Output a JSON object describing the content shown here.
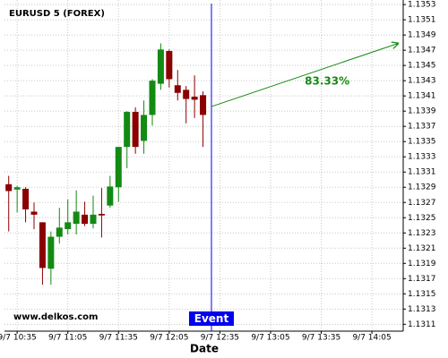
{
  "chart_data": {
    "type": "candlestick",
    "title": "EURUSD 5 (FOREX)",
    "xlabel": "Date",
    "watermark": "www.delkos.com",
    "x": [
      630,
      635,
      640,
      645,
      650,
      655,
      660,
      665,
      670,
      675,
      680,
      685,
      690,
      695,
      700,
      705,
      710,
      715,
      720,
      725,
      730,
      735,
      740,
      745
    ],
    "open": [
      1.13294,
      1.13287,
      1.13288,
      1.13258,
      1.13244,
      1.13183,
      1.13225,
      1.13235,
      1.13242,
      1.13254,
      1.13242,
      1.13255,
      1.13266,
      1.1329,
      1.13343,
      1.13389,
      1.13351,
      1.13385,
      1.13426,
      1.13469,
      1.13424,
      1.13418,
      1.13409,
      1.13411
    ],
    "high": [
      1.13305,
      1.13292,
      1.1329,
      1.1327,
      1.13244,
      1.13232,
      1.13263,
      1.13274,
      1.13286,
      1.13271,
      1.13279,
      1.13289,
      1.13305,
      1.13343,
      1.1339,
      1.13395,
      1.13404,
      1.13432,
      1.13479,
      1.13471,
      1.13444,
      1.13423,
      1.13437,
      1.13416
    ],
    "low": [
      1.13232,
      1.13257,
      1.13244,
      1.13235,
      1.13162,
      1.13162,
      1.13216,
      1.13228,
      1.13228,
      1.13239,
      1.13236,
      1.13224,
      1.13263,
      1.13271,
      1.13315,
      1.13334,
      1.13334,
      1.13371,
      1.13418,
      1.13421,
      1.13404,
      1.13374,
      1.13381,
      1.13343
    ],
    "close": [
      1.13285,
      1.1329,
      1.13261,
      1.13254,
      1.13184,
      1.13225,
      1.13237,
      1.13244,
      1.13258,
      1.13242,
      1.13254,
      1.13253,
      1.13291,
      1.13343,
      1.13389,
      1.13343,
      1.13385,
      1.1343,
      1.13471,
      1.13432,
      1.13414,
      1.13406,
      1.13405,
      1.13385
    ],
    "up_color": "#138a13",
    "down_color": "#8b0000",
    "xlim": [
      627.5,
      863.5
    ],
    "xticks": [
      {
        "value": 635,
        "label": "9/7 10:35"
      },
      {
        "value": 665,
        "label": "9/7 11:05"
      },
      {
        "value": 695,
        "label": "9/7 11:35"
      },
      {
        "value": 725,
        "label": "9/7 12:05"
      },
      {
        "value": 755,
        "label": "9/7 12:35"
      },
      {
        "value": 785,
        "label": "9/7 13:05"
      },
      {
        "value": 815,
        "label": "9/7 13:35"
      },
      {
        "value": 845,
        "label": "9/7 14:05"
      }
    ],
    "ylim": [
      1.13101,
      1.13536
    ],
    "yticks": [
      1.1311,
      1.1313,
      1.1315,
      1.1317,
      1.1319,
      1.1321,
      1.1323,
      1.1325,
      1.1327,
      1.1329,
      1.1331,
      1.1333,
      1.1335,
      1.1337,
      1.1339,
      1.1341,
      1.1343,
      1.1345,
      1.1347,
      1.1349,
      1.1351,
      1.1353
    ],
    "grid": true,
    "event": {
      "x": 750,
      "label": "Event",
      "color": "#0000ee"
    },
    "projection": {
      "x": [
        750,
        860.5
      ],
      "y": [
        1.13396,
        1.13479
      ],
      "label": "83.33%",
      "color": "#138a13"
    }
  }
}
